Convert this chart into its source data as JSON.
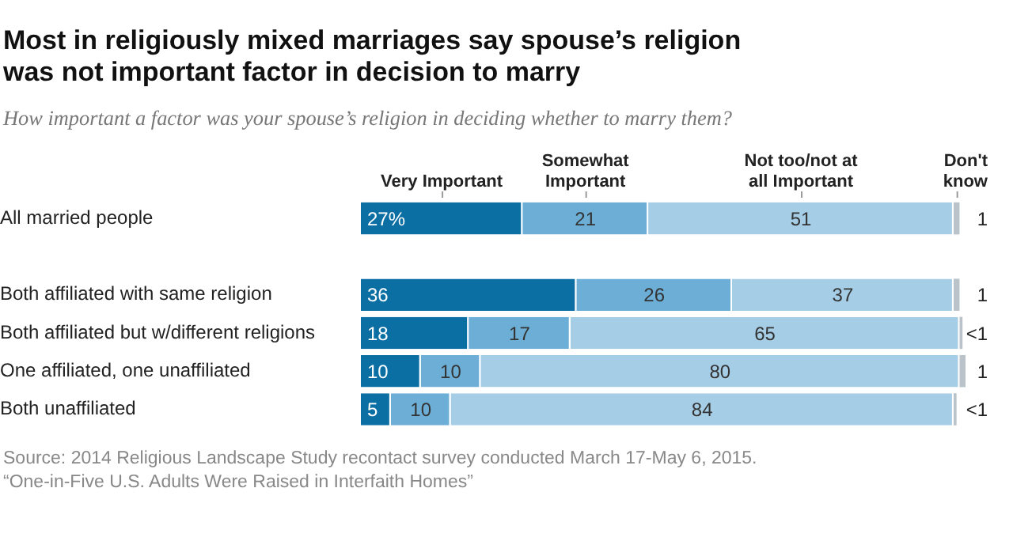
{
  "chart_data": {
    "type": "bar",
    "orientation": "horizontal",
    "stacked": true,
    "title": "Most in religiously mixed marriages say spouse’s religion was not important factor in decision to marry",
    "subtitle": "How important a factor was your spouse’s religion in deciding whether to marry them?",
    "categories": [
      "All married people",
      null,
      "Both affiliated with same religion",
      "Both affiliated but w/different religions",
      "One affiliated, one unaffiliated",
      "Both unaffiliated"
    ],
    "series": [
      {
        "name": "Very Important",
        "color": "#0b6fa4",
        "values": [
          27,
          null,
          36,
          18,
          10,
          5
        ],
        "value_labels": [
          "27%",
          null,
          "36",
          "18",
          "10",
          "5"
        ]
      },
      {
        "name": "Somewhat Important",
        "color": "#6caed6",
        "values": [
          21,
          null,
          26,
          17,
          10,
          10
        ],
        "value_labels": [
          "21",
          null,
          "26",
          "17",
          "10",
          "10"
        ]
      },
      {
        "name": "Not too/not at all Important",
        "color": "#a6cde6",
        "values": [
          51,
          null,
          37,
          65,
          80,
          84
        ],
        "value_labels": [
          "51",
          null,
          "37",
          "65",
          "80",
          "84"
        ]
      },
      {
        "name": "Don't know",
        "color": "#b9c3c9",
        "values": [
          1,
          null,
          1,
          0.5,
          1,
          0.5
        ],
        "value_labels": [
          "1",
          null,
          "1",
          "<1",
          "1",
          "<1"
        ]
      }
    ],
    "xlim": [
      0,
      101
    ],
    "legend": "top",
    "tick_labels": "y",
    "annotations": [
      "Source: 2014 Religious Landscape Study recontact survey conducted March 17-May 6, 2015.",
      "“One-in-Five U.S. Adults Were Raised in Interfaith Homes”"
    ]
  }
}
